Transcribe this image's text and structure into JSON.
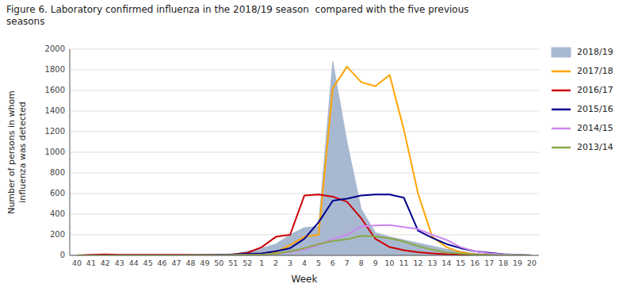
{
  "chart_data": {
    "type": "line",
    "title": "Figure 6. Laboratory confirmed influenza in the 2018/19 season  compared with the five previous\nseasons",
    "x_label": "Week",
    "y_label": "Number of persons in whom\ninfluenza was detected",
    "categories": [
      40,
      41,
      42,
      43,
      44,
      45,
      46,
      47,
      48,
      49,
      50,
      51,
      52,
      1,
      2,
      3,
      4,
      5,
      6,
      7,
      8,
      9,
      10,
      11,
      12,
      13,
      14,
      15,
      16,
      17,
      18,
      19,
      20
    ],
    "ylim": [
      0,
      2000
    ],
    "yticks": [
      0,
      200,
      400,
      600,
      800,
      1000,
      1200,
      1400,
      1600,
      1800,
      2000
    ],
    "grid": true,
    "legend": "right",
    "series": [
      {
        "name": "2018/19",
        "type": "area",
        "color": "#a8b8d0",
        "values": [
          0,
          0,
          0,
          0,
          0,
          0,
          0,
          0,
          2,
          2,
          5,
          10,
          40,
          70,
          110,
          200,
          270,
          280,
          1880,
          1100,
          450,
          220,
          180,
          150,
          120,
          90,
          60,
          40,
          20,
          10,
          5,
          2,
          0
        ]
      },
      {
        "name": "2017/18",
        "type": "line",
        "color": "#ffa500",
        "values": [
          0,
          0,
          0,
          0,
          0,
          0,
          0,
          0,
          2,
          2,
          5,
          10,
          15,
          20,
          30,
          100,
          180,
          200,
          1620,
          1830,
          1680,
          1640,
          1750,
          1220,
          600,
          180,
          80,
          30,
          10,
          5,
          2,
          0,
          0
        ]
      },
      {
        "name": "2016/17",
        "type": "line",
        "color": "#cc0000",
        "values": [
          0,
          5,
          10,
          5,
          5,
          5,
          5,
          5,
          5,
          5,
          5,
          10,
          25,
          80,
          180,
          200,
          580,
          590,
          570,
          520,
          360,
          160,
          80,
          50,
          30,
          20,
          12,
          8,
          5,
          2,
          1,
          0,
          0
        ]
      },
      {
        "name": "2015/16",
        "type": "line",
        "color": "#00008b",
        "values": [
          0,
          0,
          0,
          0,
          0,
          0,
          0,
          0,
          2,
          2,
          5,
          10,
          15,
          20,
          40,
          70,
          160,
          320,
          530,
          550,
          580,
          590,
          590,
          560,
          240,
          170,
          110,
          70,
          40,
          25,
          12,
          5,
          0
        ]
      },
      {
        "name": "2014/15",
        "type": "line",
        "color": "#cc88ee",
        "values": [
          0,
          0,
          0,
          0,
          0,
          0,
          0,
          0,
          2,
          2,
          2,
          3,
          5,
          8,
          15,
          30,
          55,
          100,
          160,
          200,
          280,
          290,
          295,
          275,
          255,
          200,
          150,
          80,
          40,
          20,
          10,
          5,
          0
        ]
      },
      {
        "name": "2013/14",
        "type": "line",
        "color": "#88aa44",
        "values": [
          0,
          0,
          0,
          0,
          0,
          0,
          0,
          0,
          2,
          2,
          2,
          3,
          5,
          8,
          15,
          40,
          70,
          110,
          140,
          155,
          190,
          185,
          165,
          135,
          90,
          55,
          28,
          18,
          8,
          4,
          2,
          1,
          0
        ]
      }
    ]
  }
}
